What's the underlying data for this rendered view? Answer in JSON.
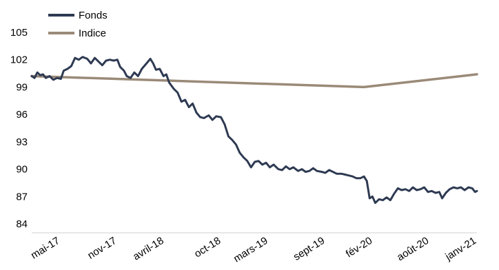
{
  "chart_data": {
    "type": "line",
    "ylim": [
      84,
      105
    ],
    "yticks": [
      "105",
      "102",
      "99",
      "96",
      "93",
      "90",
      "87",
      "84"
    ],
    "xticks": [
      {
        "label": "mai-17",
        "x": 1.75
      },
      {
        "label": "nov-17",
        "x": 7.78
      },
      {
        "label": "avril-18",
        "x": 12.8
      },
      {
        "label": "oct-18",
        "x": 18.85
      },
      {
        "label": "mars-19",
        "x": 23.85
      },
      {
        "label": "sept-19",
        "x": 29.9
      },
      {
        "label": "fév-20",
        "x": 34.95
      },
      {
        "label": "août-20",
        "x": 40.95
      },
      {
        "label": "janv-21",
        "x": 46.0
      }
    ],
    "xlim": [
      -1.3,
      46.0
    ],
    "legend": {
      "placement": "top-left"
    },
    "series": [
      {
        "name": "Fonds",
        "color": "#2e3a52",
        "points": [
          [
            -1.3,
            100.2
          ],
          [
            -1.0,
            100.0
          ],
          [
            -0.7,
            100.6
          ],
          [
            -0.4,
            100.3
          ],
          [
            -0.1,
            100.4
          ],
          [
            0.2,
            100.0
          ],
          [
            0.6,
            100.2
          ],
          [
            1.0,
            99.8
          ],
          [
            1.4,
            100.0
          ],
          [
            1.8,
            99.9
          ],
          [
            2.1,
            100.8
          ],
          [
            2.5,
            101.0
          ],
          [
            2.9,
            101.3
          ],
          [
            3.3,
            102.2
          ],
          [
            3.7,
            102.0
          ],
          [
            4.1,
            102.3
          ],
          [
            4.6,
            102.1
          ],
          [
            5.0,
            101.6
          ],
          [
            5.4,
            102.2
          ],
          [
            5.8,
            101.8
          ],
          [
            6.2,
            101.4
          ],
          [
            6.6,
            101.9
          ],
          [
            7.0,
            102.0
          ],
          [
            7.4,
            101.9
          ],
          [
            7.8,
            102.0
          ],
          [
            8.1,
            101.2
          ],
          [
            8.5,
            100.8
          ],
          [
            8.8,
            100.2
          ],
          [
            9.2,
            100.0
          ],
          [
            9.6,
            100.6
          ],
          [
            10.0,
            100.2
          ],
          [
            10.4,
            101.0
          ],
          [
            10.9,
            101.6
          ],
          [
            11.3,
            102.1
          ],
          [
            11.6,
            101.6
          ],
          [
            11.9,
            100.9
          ],
          [
            12.3,
            101.0
          ],
          [
            12.7,
            100.2
          ],
          [
            13.0,
            100.4
          ],
          [
            13.3,
            99.5
          ],
          [
            13.8,
            98.8
          ],
          [
            14.2,
            98.4
          ],
          [
            14.6,
            97.4
          ],
          [
            15.0,
            97.6
          ],
          [
            15.4,
            96.8
          ],
          [
            15.8,
            97.2
          ],
          [
            16.2,
            96.2
          ],
          [
            16.6,
            95.7
          ],
          [
            17.0,
            95.6
          ],
          [
            17.5,
            95.9
          ],
          [
            17.9,
            95.4
          ],
          [
            18.3,
            95.8
          ],
          [
            18.8,
            95.7
          ],
          [
            19.2,
            94.9
          ],
          [
            19.6,
            93.6
          ],
          [
            20.0,
            93.2
          ],
          [
            20.4,
            92.7
          ],
          [
            20.8,
            91.8
          ],
          [
            21.2,
            91.3
          ],
          [
            21.6,
            90.9
          ],
          [
            22.0,
            90.2
          ],
          [
            22.4,
            90.8
          ],
          [
            22.8,
            90.9
          ],
          [
            23.2,
            90.5
          ],
          [
            23.6,
            90.7
          ],
          [
            24.0,
            90.2
          ],
          [
            24.4,
            90.5
          ],
          [
            24.9,
            90.0
          ],
          [
            25.3,
            89.9
          ],
          [
            25.7,
            90.3
          ],
          [
            26.1,
            90.0
          ],
          [
            26.5,
            90.2
          ],
          [
            27.0,
            89.8
          ],
          [
            27.4,
            90.0
          ],
          [
            27.8,
            89.7
          ],
          [
            28.2,
            89.8
          ],
          [
            28.6,
            90.1
          ],
          [
            29.0,
            89.8
          ],
          [
            29.5,
            89.7
          ],
          [
            29.9,
            89.6
          ],
          [
            30.3,
            89.9
          ],
          [
            30.7,
            89.7
          ],
          [
            31.1,
            89.5
          ],
          [
            31.6,
            89.5
          ],
          [
            32.0,
            89.4
          ],
          [
            32.4,
            89.3
          ],
          [
            32.8,
            89.2
          ],
          [
            33.2,
            89.0
          ],
          [
            33.6,
            89.0
          ],
          [
            34.0,
            89.2
          ],
          [
            34.3,
            88.7
          ],
          [
            34.6,
            86.8
          ],
          [
            34.9,
            87.0
          ],
          [
            35.2,
            86.3
          ],
          [
            35.6,
            86.7
          ],
          [
            36.0,
            86.6
          ],
          [
            36.4,
            86.9
          ],
          [
            36.8,
            86.6
          ],
          [
            37.2,
            87.3
          ],
          [
            37.6,
            87.9
          ],
          [
            38.0,
            87.7
          ],
          [
            38.4,
            87.8
          ],
          [
            38.8,
            87.6
          ],
          [
            39.2,
            88.0
          ],
          [
            39.6,
            87.7
          ],
          [
            40.0,
            87.8
          ],
          [
            40.4,
            88.0
          ],
          [
            40.8,
            87.5
          ],
          [
            41.2,
            87.6
          ],
          [
            41.6,
            87.4
          ],
          [
            42.0,
            87.5
          ],
          [
            42.3,
            86.8
          ],
          [
            42.7,
            87.4
          ],
          [
            43.1,
            87.8
          ],
          [
            43.5,
            88.0
          ],
          [
            43.9,
            87.9
          ],
          [
            44.3,
            88.0
          ],
          [
            44.7,
            87.7
          ],
          [
            45.1,
            88.0
          ],
          [
            45.5,
            87.9
          ],
          [
            45.8,
            87.5
          ],
          [
            46.0,
            87.6
          ]
        ]
      },
      {
        "name": "Indice",
        "color": "#9a8a78",
        "points": [
          [
            -1.3,
            100.2
          ],
          [
            34.0,
            99.0
          ],
          [
            46.0,
            100.4
          ]
        ]
      }
    ]
  }
}
